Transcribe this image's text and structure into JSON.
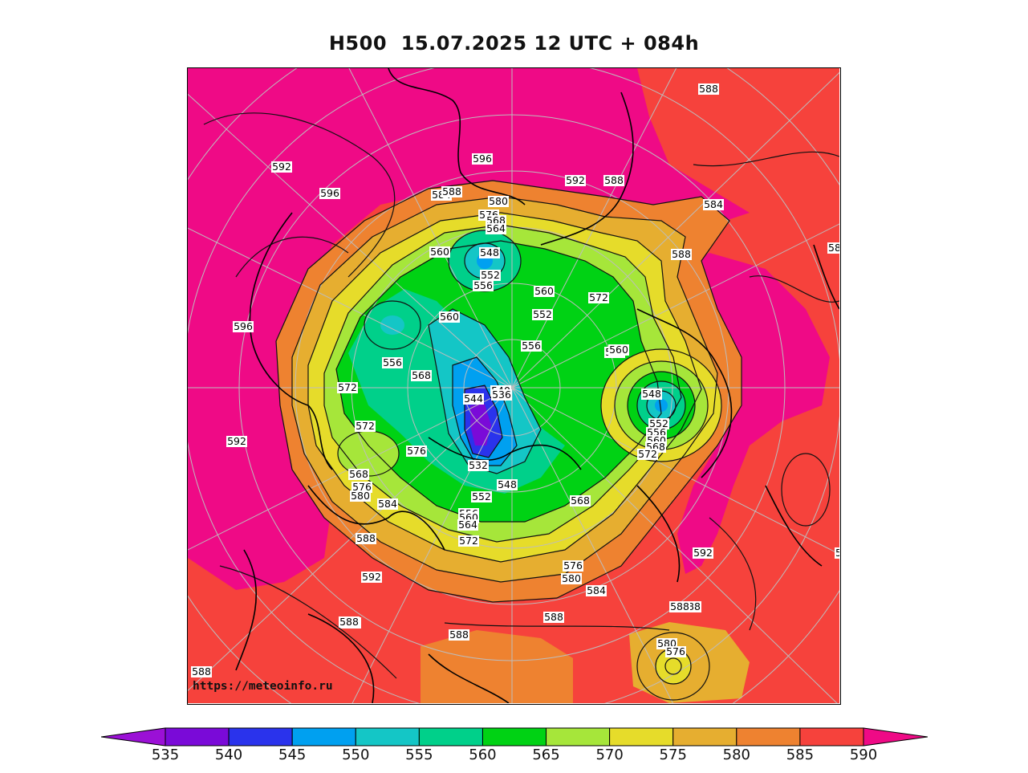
{
  "title": "H500  15.07.2025 12 UTC + 084h",
  "watermark": "https://meteoinfo.ru",
  "colorbar": {
    "ticks": [
      "535",
      "540",
      "545",
      "550",
      "555",
      "560",
      "565",
      "570",
      "575",
      "580",
      "585",
      "590"
    ],
    "under_color": "#9b10d6",
    "over_color": "#ef0a86",
    "bins": [
      "#7a0ad8",
      "#2a33ec",
      "#00a0f0",
      "#14c6c6",
      "#00d08a",
      "#00d214",
      "#a6e63a",
      "#e6dc2a",
      "#e6ae30",
      "#ee8230",
      "#f6423c"
    ]
  },
  "contour_labels": [
    {
      "t": "596"
    },
    {
      "t": "592"
    },
    {
      "t": "588"
    },
    {
      "t": "596"
    },
    {
      "t": "592"
    },
    {
      "t": "588"
    },
    {
      "t": "584"
    },
    {
      "t": "588"
    },
    {
      "t": "58"
    },
    {
      "t": "584"
    },
    {
      "t": "588"
    },
    {
      "t": "580"
    },
    {
      "t": "576"
    },
    {
      "t": "568"
    },
    {
      "t": "564"
    },
    {
      "t": "548"
    },
    {
      "t": "560"
    },
    {
      "t": "552"
    },
    {
      "t": "556"
    },
    {
      "t": "596"
    },
    {
      "t": "560"
    },
    {
      "t": "560"
    },
    {
      "t": "572"
    },
    {
      "t": "552"
    },
    {
      "t": "556"
    },
    {
      "t": "564"
    },
    {
      "t": "560"
    },
    {
      "t": "556"
    },
    {
      "t": "568"
    },
    {
      "t": "572"
    },
    {
      "t": "548"
    },
    {
      "t": "540"
    },
    {
      "t": "544"
    },
    {
      "t": "536"
    },
    {
      "t": "552"
    },
    {
      "t": "556"
    },
    {
      "t": "560"
    },
    {
      "t": "568"
    },
    {
      "t": "572"
    },
    {
      "t": "572"
    },
    {
      "t": "592"
    },
    {
      "t": "576"
    },
    {
      "t": "568"
    },
    {
      "t": "576"
    },
    {
      "t": "580"
    },
    {
      "t": "584"
    },
    {
      "t": "532"
    },
    {
      "t": "548"
    },
    {
      "t": "552"
    },
    {
      "t": "556"
    },
    {
      "t": "560"
    },
    {
      "t": "564"
    },
    {
      "t": "572"
    },
    {
      "t": "568"
    },
    {
      "t": "576"
    },
    {
      "t": "580"
    },
    {
      "t": "584"
    },
    {
      "t": "588"
    },
    {
      "t": "592"
    },
    {
      "t": "588"
    },
    {
      "t": "588"
    },
    {
      "t": "592"
    },
    {
      "t": "588"
    },
    {
      "t": "588"
    },
    {
      "t": "58"
    },
    {
      "t": "580"
    },
    {
      "t": "576"
    },
    {
      "t": "588"
    },
    {
      "t": "592"
    },
    {
      "t": "588"
    }
  ]
}
